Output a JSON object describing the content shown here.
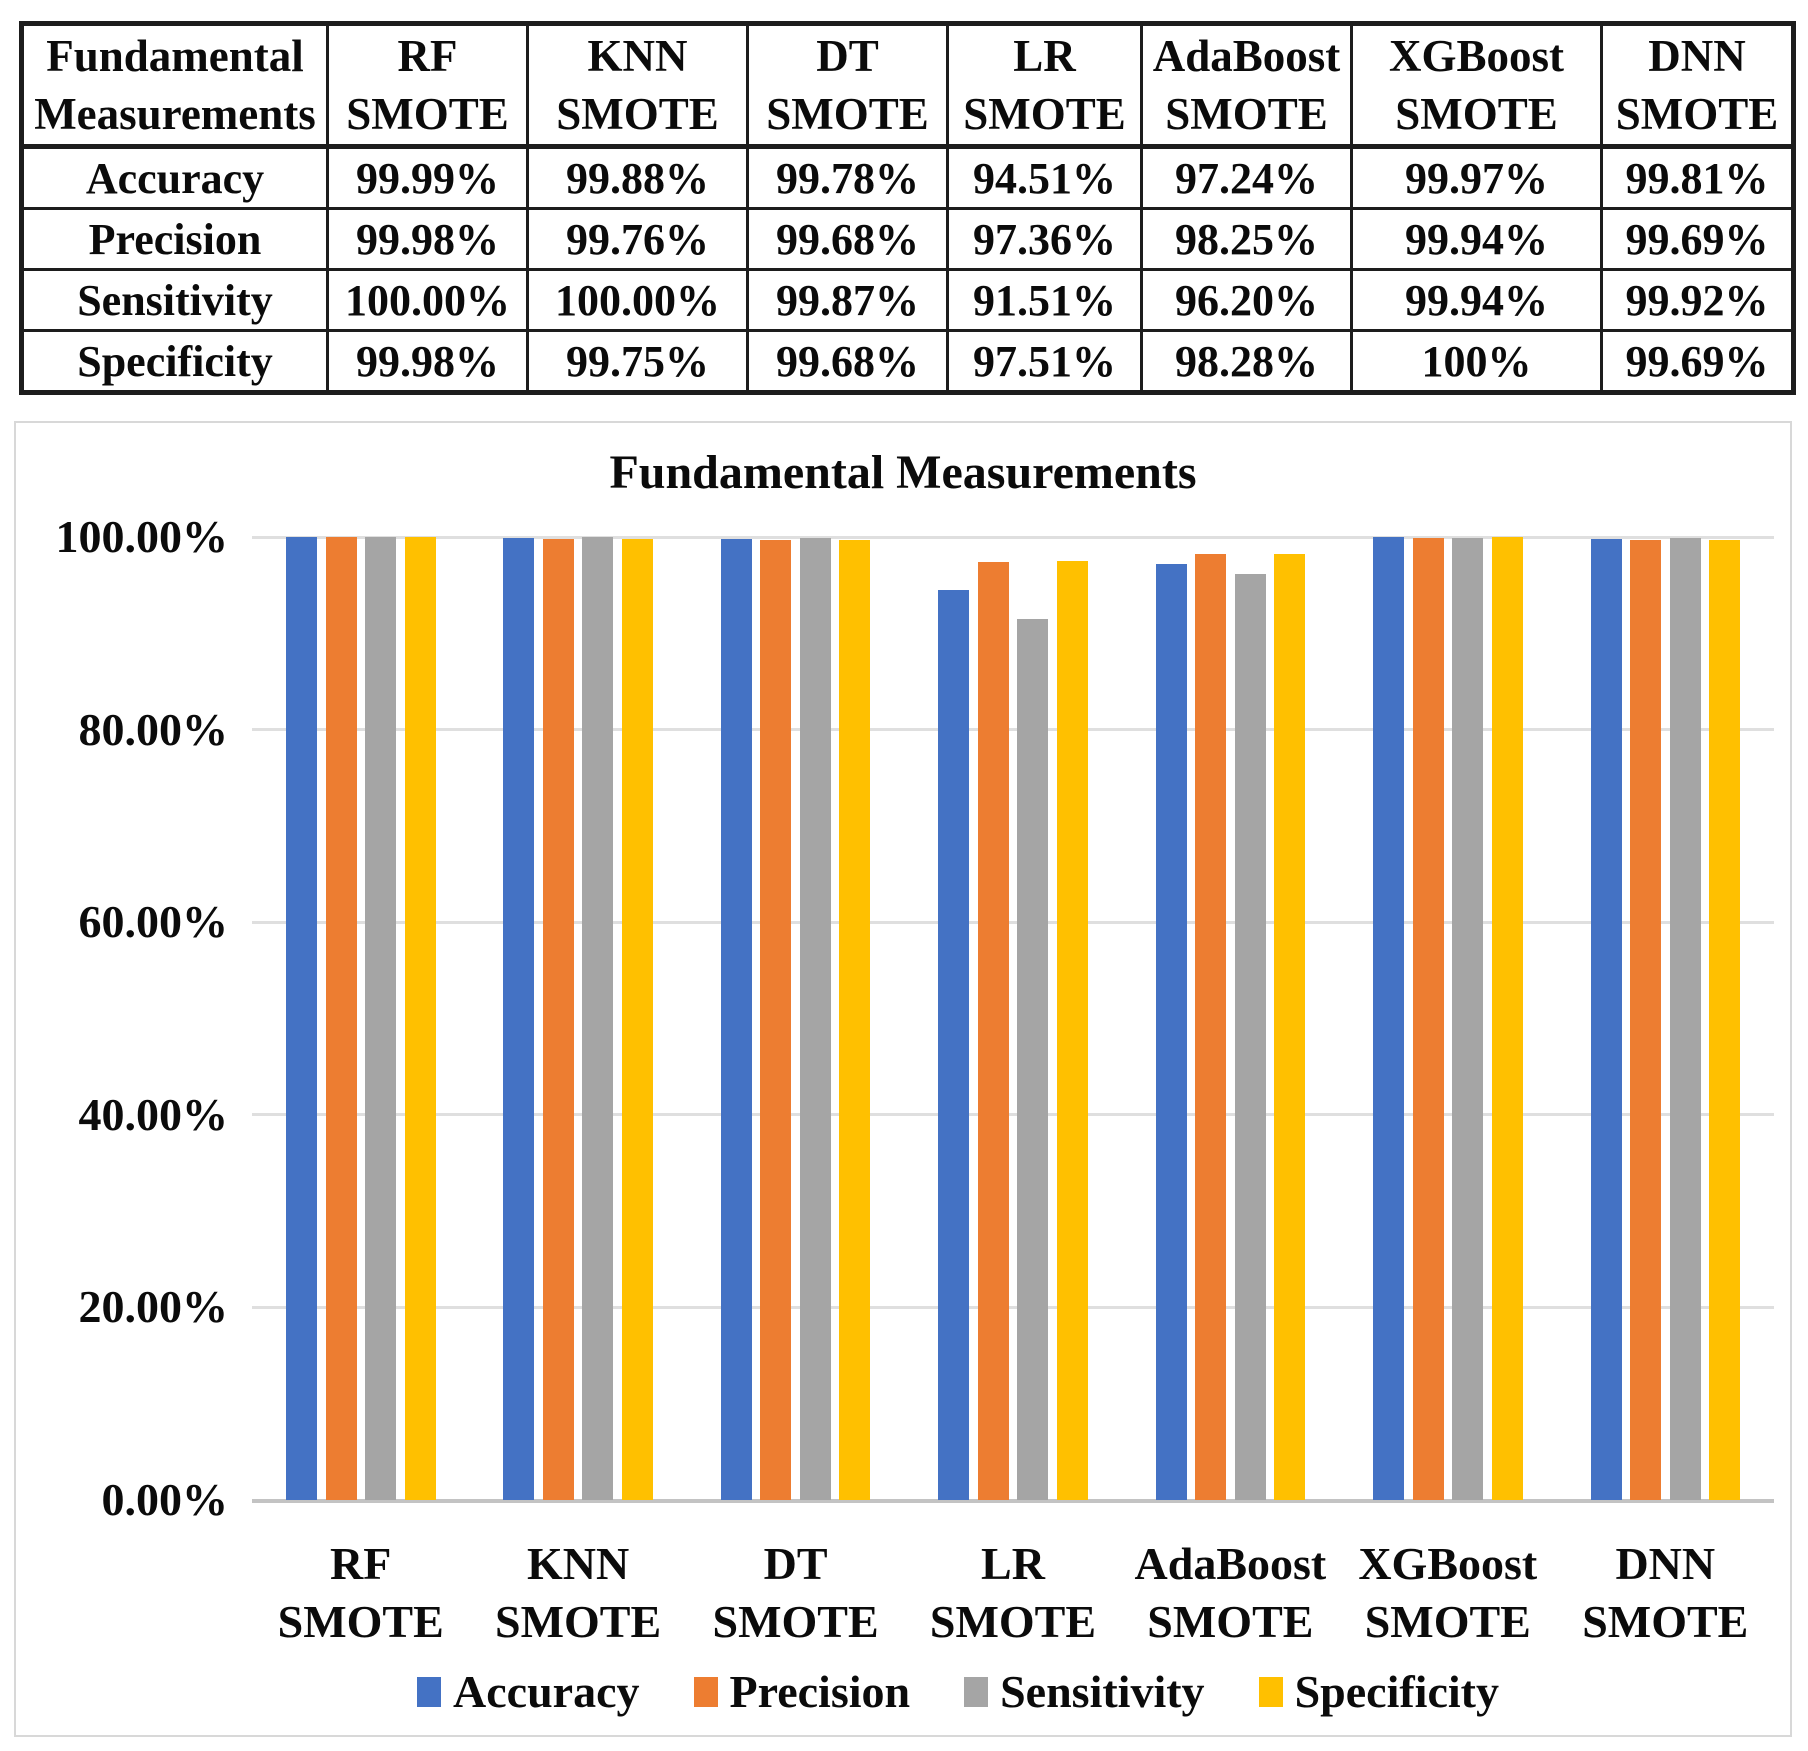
{
  "table": {
    "row_header": {
      "line1": "Fundamental",
      "line2": "Measurements"
    },
    "columns": [
      {
        "line1": "RF",
        "line2": "SMOTE"
      },
      {
        "line1": "KNN",
        "line2": "SMOTE"
      },
      {
        "line1": "DT",
        "line2": "SMOTE"
      },
      {
        "line1": "LR",
        "line2": "SMOTE"
      },
      {
        "line1": "AdaBoost",
        "line2": "SMOTE"
      },
      {
        "line1": "XGBoost",
        "line2": "SMOTE"
      },
      {
        "line1": "DNN",
        "line2": "SMOTE"
      }
    ],
    "rows": [
      {
        "label": "Accuracy",
        "values": [
          "99.99%",
          "99.88%",
          "99.78%",
          "94.51%",
          "97.24%",
          "99.97%",
          "99.81%"
        ]
      },
      {
        "label": "Precision",
        "values": [
          "99.98%",
          "99.76%",
          "99.68%",
          "97.36%",
          "98.25%",
          "99.94%",
          "99.69%"
        ]
      },
      {
        "label": "Sensitivity",
        "values": [
          "100.00%",
          "100.00%",
          "99.87%",
          "91.51%",
          "96.20%",
          "99.94%",
          "99.92%"
        ]
      },
      {
        "label": "Specificity",
        "values": [
          "99.98%",
          "99.75%",
          "99.68%",
          "97.51%",
          "98.28%",
          "100%",
          "99.69%"
        ]
      }
    ]
  },
  "chart_data": {
    "type": "bar",
    "title": "Fundamental Measurements",
    "categories": [
      "RF SMOTE",
      "KNN SMOTE",
      "DT SMOTE",
      "LR SMOTE",
      "AdaBoost SMOTE",
      "XGBoost SMOTE",
      "DNN SMOTE"
    ],
    "category_lines": [
      [
        "RF",
        "SMOTE"
      ],
      [
        "KNN",
        "SMOTE"
      ],
      [
        "DT",
        "SMOTE"
      ],
      [
        "LR",
        "SMOTE"
      ],
      [
        "AdaBoost",
        "SMOTE"
      ],
      [
        "XGBoost",
        "SMOTE"
      ],
      [
        "DNN",
        "SMOTE"
      ]
    ],
    "series": [
      {
        "name": "Accuracy",
        "color": "#4472C4",
        "values": [
          99.99,
          99.88,
          99.78,
          94.51,
          97.24,
          99.97,
          99.81
        ]
      },
      {
        "name": "Precision",
        "color": "#ED7D31",
        "values": [
          99.98,
          99.76,
          99.68,
          97.36,
          98.25,
          99.94,
          99.69
        ]
      },
      {
        "name": "Sensitivity",
        "color": "#A5A5A5",
        "values": [
          100.0,
          100.0,
          99.87,
          91.51,
          96.2,
          99.94,
          99.92
        ]
      },
      {
        "name": "Specificity",
        "color": "#FFC000",
        "values": [
          99.98,
          99.75,
          99.68,
          97.51,
          98.28,
          100.0,
          99.69
        ]
      }
    ],
    "y_ticks": [
      {
        "label": "100.00%",
        "value": 100
      },
      {
        "label": "80.00%",
        "value": 80
      },
      {
        "label": "60.00%",
        "value": 60
      },
      {
        "label": "40.00%",
        "value": 40
      },
      {
        "label": "20.00%",
        "value": 20
      },
      {
        "label": "0.00%",
        "value": 0
      }
    ],
    "ylim": [
      0,
      100
    ],
    "grid": true,
    "legend_position": "bottom"
  }
}
